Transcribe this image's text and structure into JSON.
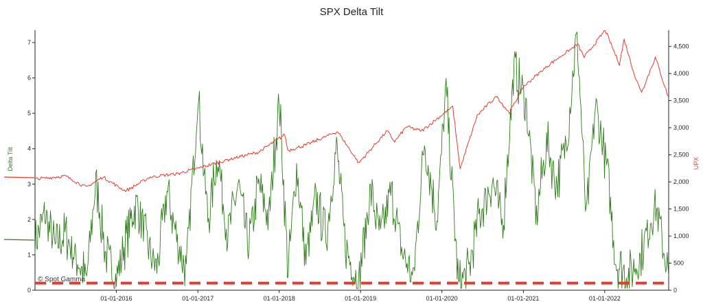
{
  "chart_data": {
    "type": "line",
    "title": "SPX Delta Tilt",
    "ylabel_left": "Delta Tilt",
    "ylabel_right": "UPX",
    "ylim_left": [
      0,
      7.35
    ],
    "ylim_right": [
      0,
      4800
    ],
    "yticks_left": [
      "0",
      "1",
      "2",
      "3",
      "4",
      "5",
      "6",
      "7"
    ],
    "yticks_right": [
      "0",
      "500",
      "1,000",
      "1,500",
      "2,000",
      "2,500",
      "3,000",
      "3,500",
      "4,000",
      "4,500"
    ],
    "xticks": [
      "01-01-2016",
      "01-01-2017",
      "01-01-2018",
      "01-01-2019",
      "01-01-2020",
      "01-01-2021",
      "01-01-2022"
    ],
    "xlim": [
      "2015-01-01",
      "2022-10-15"
    ],
    "watermark": "© Spot Gamma",
    "colors": {
      "delta_tilt": "#2e7d1a",
      "upx": "#e8392a",
      "threshold": "#e8392a"
    },
    "series": [
      {
        "name": "Delta Tilt",
        "axis": "left",
        "points": [
          [
            "2015-01-01",
            1.4
          ],
          [
            "2015-02-15",
            2.1
          ],
          [
            "2015-04-01",
            1.2
          ],
          [
            "2015-05-15",
            1.6
          ],
          [
            "2015-07-01",
            1.0
          ],
          [
            "2015-08-20",
            0.3
          ],
          [
            "2015-10-01",
            3.1
          ],
          [
            "2015-11-15",
            1.0
          ],
          [
            "2016-01-01",
            0.3
          ],
          [
            "2016-02-15",
            1.5
          ],
          [
            "2016-04-01",
            2.5
          ],
          [
            "2016-05-15",
            1.4
          ],
          [
            "2016-07-01",
            0.6
          ],
          [
            "2016-08-15",
            2.8
          ],
          [
            "2016-10-01",
            1.4
          ],
          [
            "2016-11-10",
            0.5
          ],
          [
            "2017-01-01",
            5.5
          ],
          [
            "2017-02-15",
            2.0
          ],
          [
            "2017-04-01",
            3.8
          ],
          [
            "2017-05-15",
            1.5
          ],
          [
            "2017-07-01",
            3.0
          ],
          [
            "2017-08-15",
            1.2
          ],
          [
            "2017-10-01",
            3.0
          ],
          [
            "2017-11-15",
            2.0
          ],
          [
            "2018-01-01",
            5.4
          ],
          [
            "2018-02-10",
            0.5
          ],
          [
            "2018-03-20",
            3.5
          ],
          [
            "2018-05-01",
            0.8
          ],
          [
            "2018-06-15",
            2.6
          ],
          [
            "2018-08-01",
            1.5
          ],
          [
            "2018-09-15",
            4.1
          ],
          [
            "2018-10-25",
            1.2
          ],
          [
            "2018-12-24",
            0.2
          ],
          [
            "2019-02-15",
            2.8
          ],
          [
            "2019-04-01",
            1.5
          ],
          [
            "2019-05-20",
            2.8
          ],
          [
            "2019-07-01",
            1.2
          ],
          [
            "2019-08-25",
            0.3
          ],
          [
            "2019-10-15",
            4.2
          ],
          [
            "2019-12-10",
            2.0
          ],
          [
            "2020-01-20",
            5.7
          ],
          [
            "2020-03-16",
            0.1
          ],
          [
            "2020-05-01",
            0.6
          ],
          [
            "2020-06-15",
            2.1
          ],
          [
            "2020-08-15",
            3.1
          ],
          [
            "2020-10-01",
            1.8
          ],
          [
            "2020-11-20",
            6.3
          ],
          [
            "2021-01-15",
            5.2
          ],
          [
            "2021-03-01",
            2.1
          ],
          [
            "2021-04-15",
            4.2
          ],
          [
            "2021-06-01",
            3.0
          ],
          [
            "2021-07-15",
            4.3
          ],
          [
            "2021-08-30",
            7.3
          ],
          [
            "2021-10-10",
            2.0
          ],
          [
            "2021-11-20",
            5.2
          ],
          [
            "2022-01-10",
            3.5
          ],
          [
            "2022-02-20",
            0.8
          ],
          [
            "2022-04-15",
            0.4
          ],
          [
            "2022-06-10",
            0.9
          ],
          [
            "2022-08-15",
            2.5
          ],
          [
            "2022-10-15",
            0.4
          ]
        ]
      },
      {
        "name": "UPX",
        "axis": "right",
        "points": [
          [
            "2015-01-01",
            2050
          ],
          [
            "2015-05-15",
            2110
          ],
          [
            "2015-08-20",
            1900
          ],
          [
            "2015-11-01",
            2090
          ],
          [
            "2016-02-11",
            1830
          ],
          [
            "2016-06-01",
            2090
          ],
          [
            "2016-10-01",
            2150
          ],
          [
            "2017-01-01",
            2250
          ],
          [
            "2017-06-01",
            2430
          ],
          [
            "2017-10-01",
            2550
          ],
          [
            "2018-01-26",
            2870
          ],
          [
            "2018-02-09",
            2580
          ],
          [
            "2018-05-01",
            2680
          ],
          [
            "2018-09-20",
            2930
          ],
          [
            "2018-12-24",
            2350
          ],
          [
            "2019-04-30",
            2940
          ],
          [
            "2019-06-03",
            2740
          ],
          [
            "2019-07-26",
            3020
          ],
          [
            "2019-10-01",
            2940
          ],
          [
            "2019-12-31",
            3230
          ],
          [
            "2020-02-19",
            3390
          ],
          [
            "2020-03-23",
            2240
          ],
          [
            "2020-06-08",
            3230
          ],
          [
            "2020-09-02",
            3580
          ],
          [
            "2020-10-30",
            3270
          ],
          [
            "2021-01-01",
            3760
          ],
          [
            "2021-05-01",
            4180
          ],
          [
            "2021-09-02",
            4540
          ],
          [
            "2021-10-01",
            4300
          ],
          [
            "2022-01-03",
            4800
          ],
          [
            "2022-03-08",
            4170
          ],
          [
            "2022-03-29",
            4630
          ],
          [
            "2022-05-20",
            3900
          ],
          [
            "2022-06-16",
            3660
          ],
          [
            "2022-08-16",
            4300
          ],
          [
            "2022-10-12",
            3580
          ]
        ]
      },
      {
        "name": "Threshold",
        "axis": "left",
        "style": "dashed",
        "points": [
          [
            "2015-01-01",
            0.2
          ],
          [
            "2022-10-15",
            0.2
          ]
        ]
      }
    ]
  }
}
